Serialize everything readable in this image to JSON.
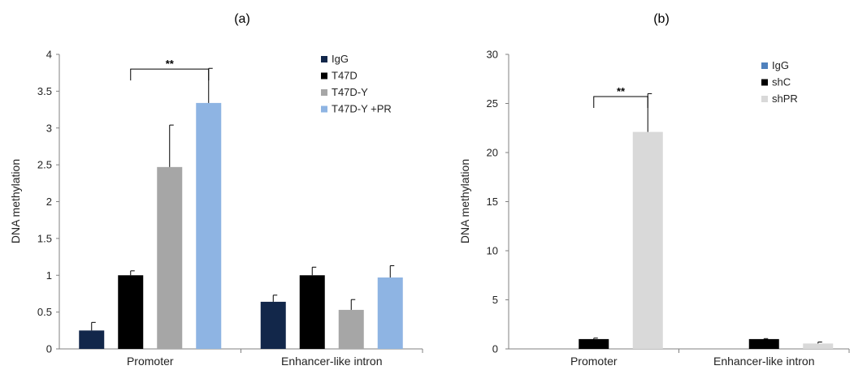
{
  "chart_data": [
    {
      "type": "bar",
      "title": "(a)",
      "ylabel": "DNA methylation",
      "ylim": [
        0,
        4
      ],
      "yticks": [
        "0",
        "0.5",
        "1",
        "1.5",
        "2",
        "2.5",
        "3",
        "3.5",
        "4"
      ],
      "categories": [
        "Promoter",
        "Enhancer-like intron"
      ],
      "legend_position": "top-right",
      "series": [
        {
          "name": "IgG",
          "color": "#12274a",
          "values": [
            0.25,
            0.64
          ],
          "errors": [
            0.11,
            0.09
          ]
        },
        {
          "name": "T47D",
          "color": "#000000",
          "values": [
            1.0,
            1.0
          ],
          "errors": [
            0.06,
            0.11
          ]
        },
        {
          "name": "T47D-Y",
          "color": "#a6a6a6",
          "values": [
            2.47,
            0.53
          ],
          "errors": [
            0.57,
            0.14
          ]
        },
        {
          "name": "T47D-Y +PR",
          "color": "#8eb4e3",
          "values": [
            3.34,
            0.97
          ],
          "errors": [
            0.47,
            0.16
          ]
        }
      ],
      "significance": {
        "label": "**",
        "category": 0,
        "from_series": 1,
        "to_series": 3,
        "y": 3.8
      }
    },
    {
      "type": "bar",
      "title": "(b)",
      "ylabel": "DNA methylation",
      "ylim": [
        0,
        30
      ],
      "yticks": [
        "0",
        "5",
        "10",
        "15",
        "20",
        "25",
        "30"
      ],
      "categories": [
        "Promoter",
        "Enhancer-like intron"
      ],
      "legend_position": "top-right",
      "series": [
        {
          "name": "IgG",
          "color": "#4f81bd",
          "values": [
            0,
            0
          ],
          "errors": [
            0,
            0
          ]
        },
        {
          "name": "shC",
          "color": "#000000",
          "values": [
            1.0,
            1.0
          ],
          "errors": [
            0.1,
            0.05
          ]
        },
        {
          "name": "shPR",
          "color": "#d9d9d9",
          "values": [
            22.1,
            0.55
          ],
          "errors": [
            3.9,
            0.15
          ]
        }
      ],
      "significance": {
        "label": "**",
        "category": 0,
        "from_series": 1,
        "to_series": 2,
        "y": 25.7
      }
    }
  ]
}
